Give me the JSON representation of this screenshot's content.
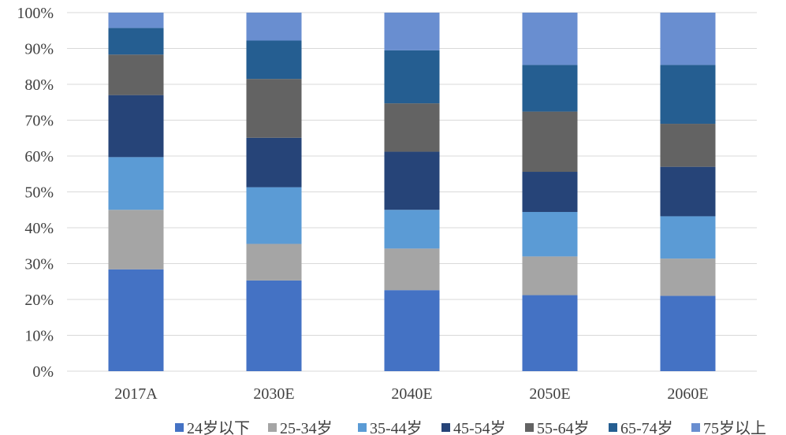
{
  "chart_data": {
    "type": "bar",
    "stacked": true,
    "percent": true,
    "categories": [
      "2017A",
      "2030E",
      "2040E",
      "2050E",
      "2060E"
    ],
    "ylim": [
      0,
      100
    ],
    "yticks": [
      "0%",
      "10%",
      "20%",
      "30%",
      "40%",
      "50%",
      "60%",
      "70%",
      "80%",
      "90%",
      "100%"
    ],
    "grid": true,
    "legend": "bottom",
    "series": [
      {
        "name": "24岁以下",
        "color": "#4472C4",
        "values": [
          28.4,
          25.3,
          22.6,
          21.2,
          21.0
        ]
      },
      {
        "name": "25-34岁",
        "color": "#A5A5A5",
        "values": [
          16.6,
          10.2,
          11.6,
          10.8,
          10.4
        ]
      },
      {
        "name": "35-44岁",
        "color": "#5B9BD5",
        "values": [
          14.7,
          15.8,
          10.8,
          12.4,
          11.8
        ]
      },
      {
        "name": "45-54岁",
        "color": "#264478",
        "values": [
          17.3,
          13.8,
          16.2,
          11.2,
          13.8
        ]
      },
      {
        "name": "55-64岁",
        "color": "#636363",
        "values": [
          11.3,
          16.4,
          13.5,
          16.8,
          12.0
        ]
      },
      {
        "name": "65-74岁",
        "color": "#255E91",
        "values": [
          7.4,
          10.7,
          14.8,
          13.0,
          16.4
        ]
      },
      {
        "name": "75岁以上",
        "color": "#698ED0",
        "values": [
          4.3,
          7.8,
          10.5,
          14.6,
          14.6
        ]
      }
    ]
  }
}
